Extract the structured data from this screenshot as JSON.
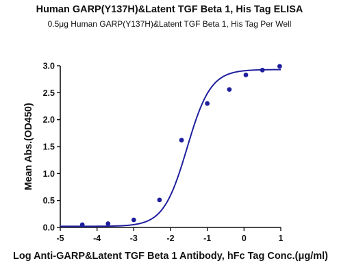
{
  "chart_data": {
    "type": "scatter",
    "title": "Human GARP(Y137H)&Latent TGF Beta 1, His Tag ELISA",
    "subtitle": "0.5μg Human GARP(Y137H)&Latent TGF Beta 1, His Tag Per Well",
    "xlabel": "Log Anti-GARP&Latent TGF Beta 1 Antibody, hFc Tag Conc.(μg/ml)",
    "ylabel": "Mean Abs.(OD450)",
    "xlim": [
      -5,
      1
    ],
    "ylim": [
      0,
      3.0
    ],
    "x_ticks": [
      "-5",
      "-4",
      "-3",
      "-2",
      "-1",
      "0",
      "1"
    ],
    "y_ticks": [
      "0.0",
      "0.5",
      "1.0",
      "1.5",
      "2.0",
      "2.5",
      "3.0"
    ],
    "grid": false,
    "point_color": "#1f1f9e",
    "curve_color": "#1f1f9e",
    "points": {
      "x": [
        -4.4,
        -3.7,
        -3.0,
        -2.3,
        -1.7,
        -1.0,
        -0.4,
        0.05,
        0.5,
        0.97
      ],
      "y": [
        0.05,
        0.07,
        0.14,
        0.51,
        1.62,
        2.3,
        2.56,
        2.83,
        2.92,
        2.99
      ]
    },
    "fit": {
      "model": "4PL",
      "bottom": 0.02,
      "top": 2.93,
      "ec50_log": -1.55,
      "hill": 1.35
    }
  }
}
